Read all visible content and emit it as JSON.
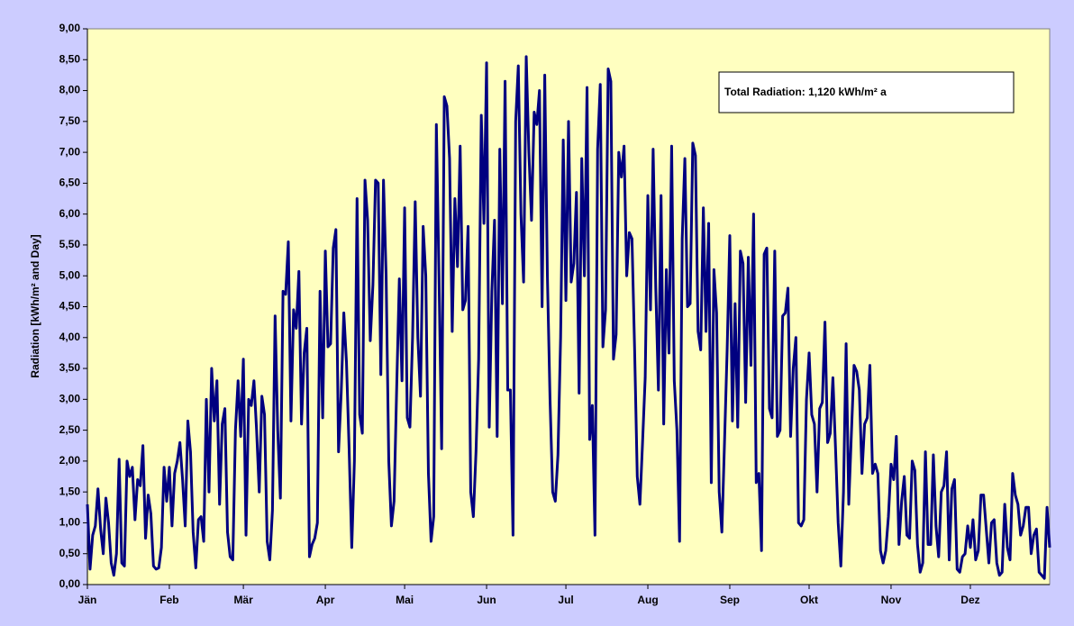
{
  "chart_data": {
    "type": "line",
    "ylabel": "Radiation [kWh/m² and Day]",
    "annotation": "Total Radiation: 1,120 kWh/m² a",
    "color": "#000080",
    "ylim": [
      0,
      9
    ],
    "yticks": [
      {
        "value": 0,
        "label": "0,00"
      },
      {
        "value": 0.5,
        "label": "0,50"
      },
      {
        "value": 1,
        "label": "1,00"
      },
      {
        "value": 1.5,
        "label": "1,50"
      },
      {
        "value": 2,
        "label": "2,00"
      },
      {
        "value": 2.5,
        "label": "2,50"
      },
      {
        "value": 3,
        "label": "3,00"
      },
      {
        "value": 3.5,
        "label": "3,50"
      },
      {
        "value": 4,
        "label": "4,00"
      },
      {
        "value": 4.5,
        "label": "4,50"
      },
      {
        "value": 5,
        "label": "5,00"
      },
      {
        "value": 5.5,
        "label": "5,50"
      },
      {
        "value": 6,
        "label": "6,00"
      },
      {
        "value": 6.5,
        "label": "6,50"
      },
      {
        "value": 7,
        "label": "7,00"
      },
      {
        "value": 7.5,
        "label": "7,50"
      },
      {
        "value": 8,
        "label": "8,00"
      },
      {
        "value": 8.5,
        "label": "8,50"
      },
      {
        "value": 9,
        "label": "9,00"
      }
    ],
    "grid": false,
    "months": [
      {
        "name": "Jän",
        "values": [
          1.3,
          0.25,
          0.8,
          0.95,
          1.55,
          0.9,
          0.5,
          1.4,
          1.0,
          0.35,
          0.15,
          0.5,
          2.03,
          0.35,
          0.3,
          2.0,
          1.75,
          1.9,
          1.05,
          1.7,
          1.6,
          2.25,
          0.75,
          1.45,
          1.15,
          0.3,
          0.25,
          0.27,
          0.6,
          1.9,
          1.35
        ]
      },
      {
        "name": "Feb",
        "values": [
          1.9,
          0.95,
          1.8,
          2.0,
          2.3,
          1.7,
          0.95,
          2.65,
          2.15,
          0.85,
          0.27,
          1.05,
          1.1,
          0.7,
          3.0,
          1.5,
          3.5,
          2.65,
          3.3,
          1.3,
          2.6,
          2.85,
          0.85,
          0.45,
          0.4,
          2.5,
          3.3,
          2.4
        ]
      },
      {
        "name": "Mär",
        "values": [
          3.65,
          0.8,
          3.0,
          2.9,
          3.3,
          2.5,
          1.5,
          3.05,
          2.75,
          0.7,
          0.4,
          1.2,
          4.35,
          2.5,
          1.4,
          4.75,
          4.7,
          5.55,
          2.65,
          4.45,
          4.15,
          5.07,
          2.6,
          3.75,
          4.15,
          0.45,
          0.65,
          0.75,
          1.0,
          4.75,
          2.7
        ]
      },
      {
        "name": "Apr",
        "values": [
          5.4,
          3.85,
          3.9,
          5.45,
          5.75,
          2.15,
          3.1,
          4.4,
          3.6,
          2.2,
          0.6,
          2.0,
          6.25,
          2.75,
          2.45,
          6.55,
          5.9,
          3.95,
          4.85,
          6.55,
          6.5,
          3.4,
          6.55,
          5.0,
          2.0,
          0.95,
          1.35,
          3.2,
          4.95,
          3.3
        ]
      },
      {
        "name": "Mai",
        "values": [
          6.1,
          2.7,
          2.55,
          4.0,
          6.2,
          4.0,
          3.05,
          5.8,
          5.0,
          1.8,
          0.7,
          1.1,
          7.45,
          5.0,
          2.2,
          7.9,
          7.75,
          6.9,
          4.1,
          6.25,
          5.15,
          7.1,
          4.45,
          4.6,
          5.8,
          1.5,
          1.1,
          2.15,
          3.65,
          7.6,
          5.85
        ]
      },
      {
        "name": "Jun",
        "values": [
          8.45,
          2.55,
          4.75,
          5.9,
          2.4,
          7.05,
          4.55,
          8.15,
          3.15,
          3.15,
          0.8,
          7.5,
          8.4,
          6.0,
          4.9,
          8.55,
          7.0,
          5.9,
          7.65,
          7.45,
          8.0,
          4.5,
          8.25,
          5.0,
          3.0,
          1.5,
          1.35,
          2.1,
          4.0,
          7.2
        ]
      },
      {
        "name": "Jul",
        "values": [
          4.6,
          7.5,
          4.9,
          5.2,
          6.35,
          3.1,
          6.9,
          5.0,
          8.05,
          2.35,
          2.9,
          0.8,
          7.05,
          8.1,
          3.85,
          4.45,
          8.35,
          8.15,
          3.65,
          4.05,
          7.0,
          6.6,
          7.1,
          5.0,
          5.7,
          5.6,
          3.8,
          1.75,
          1.3,
          2.3,
          3.35
        ]
      },
      {
        "name": "Aug",
        "values": [
          6.3,
          4.45,
          7.05,
          4.8,
          3.15,
          6.3,
          2.6,
          5.1,
          3.75,
          7.1,
          3.3,
          2.5,
          0.7,
          5.6,
          6.9,
          4.5,
          4.55,
          7.15,
          6.95,
          4.1,
          3.8,
          6.1,
          4.1,
          5.85,
          1.65,
          5.1,
          4.4,
          1.5,
          0.85,
          2.3,
          3.8
        ]
      },
      {
        "name": "Sep",
        "values": [
          5.65,
          2.65,
          4.55,
          2.55,
          5.4,
          5.2,
          2.95,
          5.3,
          3.55,
          6.0,
          1.65,
          1.8,
          0.55,
          5.35,
          5.45,
          2.85,
          2.7,
          5.4,
          2.4,
          2.5,
          4.35,
          4.4,
          4.8,
          2.4,
          3.5,
          4.0,
          1.0,
          0.95,
          1.05,
          3.0
        ]
      },
      {
        "name": "Okt",
        "values": [
          3.75,
          2.75,
          2.6,
          1.5,
          2.85,
          2.95,
          4.25,
          2.3,
          2.45,
          3.35,
          2.2,
          1.0,
          0.3,
          1.5,
          3.9,
          1.3,
          2.45,
          3.55,
          3.45,
          3.15,
          1.8,
          2.6,
          2.7,
          3.55,
          1.8,
          1.95,
          1.8,
          0.55,
          0.35,
          0.55,
          1.1
        ]
      },
      {
        "name": "Nov",
        "values": [
          1.95,
          1.7,
          2.4,
          0.65,
          1.35,
          1.75,
          0.8,
          0.75,
          2.0,
          1.85,
          0.65,
          0.2,
          0.35,
          2.15,
          0.65,
          0.65,
          2.1,
          0.95,
          0.45,
          1.5,
          1.6,
          2.15,
          0.4,
          1.55,
          1.7,
          0.25,
          0.2,
          0.45,
          0.5,
          0.95
        ]
      },
      {
        "name": "Dez",
        "values": [
          0.6,
          1.05,
          0.4,
          0.55,
          1.45,
          1.45,
          0.9,
          0.35,
          1.0,
          1.05,
          0.35,
          0.15,
          0.2,
          1.3,
          0.6,
          0.4,
          1.8,
          1.45,
          1.3,
          0.8,
          0.95,
          1.25,
          1.25,
          0.5,
          0.8,
          0.9,
          0.2,
          0.15,
          0.1,
          1.25,
          0.6
        ]
      }
    ]
  }
}
